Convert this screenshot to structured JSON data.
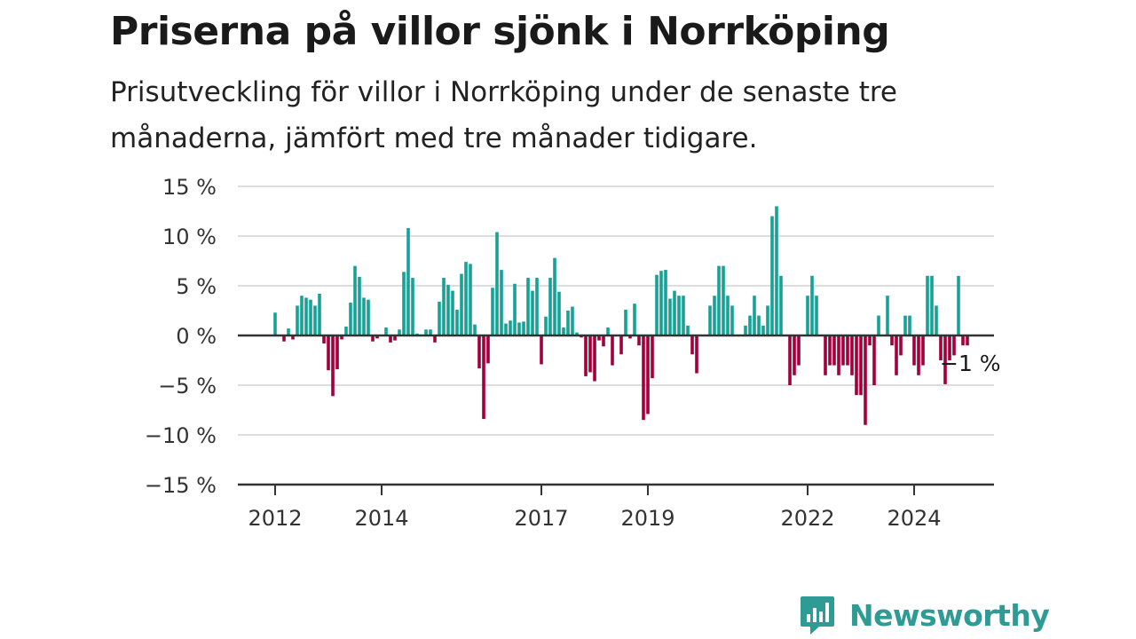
{
  "header": {
    "title": "Priserna på villor sjönk i Norrköping",
    "subtitle": "Prisutveckling för villor i Norrköping under de senaste tre månaderna, jämfört med tre månader tidigare."
  },
  "brand": {
    "name": "Newsworthy"
  },
  "colors": {
    "positive": "#17a298",
    "negative": "#a3003b",
    "grid": "#dddddd",
    "axis": "#333333",
    "brand": "#2e9c95"
  },
  "chart_data": {
    "type": "bar",
    "title": "Priserna på villor sjönk i Norrköping",
    "subtitle": "Prisutveckling för villor i Norrköping under de senaste tre månaderna, jämfört med tre månader tidigare.",
    "xlabel": "",
    "ylabel": "",
    "ylim": [
      -15,
      15
    ],
    "yticks": [
      15,
      10,
      5,
      0,
      -5,
      -10,
      -15
    ],
    "ytick_labels": [
      "15 %",
      "10 %",
      "5 %",
      "0 %",
      "−5 %",
      "−10 %",
      "−15 %"
    ],
    "xticks": [
      {
        "date": "2012-01",
        "label": "2012"
      },
      {
        "date": "2014-01",
        "label": "2014"
      },
      {
        "date": "2017-01",
        "label": "2017"
      },
      {
        "date": "2019-01",
        "label": "2019"
      },
      {
        "date": "2022-01",
        "label": "2022"
      },
      {
        "date": "2024-01",
        "label": "2024"
      }
    ],
    "grid": true,
    "annotation": {
      "date": "2025-01",
      "value": -1,
      "text": "−1 %"
    },
    "categories": [
      "2012-01",
      "2012-02",
      "2012-03",
      "2012-04",
      "2012-05",
      "2012-06",
      "2012-07",
      "2012-08",
      "2012-09",
      "2012-10",
      "2012-11",
      "2012-12",
      "2013-01",
      "2013-02",
      "2013-03",
      "2013-04",
      "2013-05",
      "2013-06",
      "2013-07",
      "2013-08",
      "2013-09",
      "2013-10",
      "2013-11",
      "2013-12",
      "2014-01",
      "2014-02",
      "2014-03",
      "2014-04",
      "2014-05",
      "2014-06",
      "2014-07",
      "2014-08",
      "2014-09",
      "2014-10",
      "2014-11",
      "2014-12",
      "2015-01",
      "2015-02",
      "2015-03",
      "2015-04",
      "2015-05",
      "2015-06",
      "2015-07",
      "2015-08",
      "2015-09",
      "2015-10",
      "2015-11",
      "2015-12",
      "2016-01",
      "2016-02",
      "2016-03",
      "2016-04",
      "2016-05",
      "2016-06",
      "2016-07",
      "2016-08",
      "2016-09",
      "2016-10",
      "2016-11",
      "2016-12",
      "2017-01",
      "2017-02",
      "2017-03",
      "2017-04",
      "2017-05",
      "2017-06",
      "2017-07",
      "2017-08",
      "2017-09",
      "2017-10",
      "2017-11",
      "2017-12",
      "2018-01",
      "2018-02",
      "2018-03",
      "2018-04",
      "2018-05",
      "2018-06",
      "2018-07",
      "2018-08",
      "2018-09",
      "2018-10",
      "2018-11",
      "2018-12",
      "2019-01",
      "2019-02",
      "2019-03",
      "2019-04",
      "2019-05",
      "2019-06",
      "2019-07",
      "2019-08",
      "2019-09",
      "2019-10",
      "2019-11",
      "2019-12",
      "2020-01",
      "2020-02",
      "2020-03",
      "2020-04",
      "2020-05",
      "2020-06",
      "2020-07",
      "2020-08",
      "2020-09",
      "2020-10",
      "2020-11",
      "2020-12",
      "2021-01",
      "2021-02",
      "2021-03",
      "2021-04",
      "2021-05",
      "2021-06",
      "2021-07",
      "2021-08",
      "2021-09",
      "2021-10",
      "2021-11",
      "2021-12",
      "2022-01",
      "2022-02",
      "2022-03",
      "2022-04",
      "2022-05",
      "2022-06",
      "2022-07",
      "2022-08",
      "2022-09",
      "2022-10",
      "2022-11",
      "2022-12",
      "2023-01",
      "2023-02",
      "2023-03",
      "2023-04",
      "2023-05",
      "2023-06",
      "2023-07",
      "2023-08",
      "2023-09",
      "2023-10",
      "2023-11",
      "2023-12",
      "2024-01",
      "2024-02",
      "2024-03",
      "2024-04",
      "2024-05",
      "2024-06",
      "2024-07",
      "2024-08",
      "2024-09",
      "2024-10",
      "2024-11",
      "2024-12",
      "2025-01"
    ],
    "values": [
      2.3,
      0,
      -0.6,
      0.7,
      -0.4,
      3.0,
      4.0,
      3.8,
      3.6,
      3.0,
      4.2,
      -0.8,
      -3.5,
      -6.1,
      -3.4,
      -0.4,
      0.9,
      3.3,
      7.0,
      5.9,
      3.8,
      3.6,
      -0.6,
      -0.3,
      0,
      0.8,
      -0.7,
      -0.5,
      0.6,
      6.4,
      10.8,
      5.8,
      0.2,
      0.1,
      0.6,
      0.6,
      -0.7,
      3.4,
      5.8,
      5.1,
      4.5,
      2.6,
      6.2,
      7.4,
      7.2,
      1.1,
      -3.3,
      -8.4,
      -2.8,
      4.8,
      10.4,
      6.6,
      1.2,
      1.5,
      5.2,
      1.3,
      1.4,
      5.8,
      4.5,
      5.8,
      -2.9,
      1.9,
      5.8,
      7.8,
      4.4,
      0.8,
      2.5,
      2.9,
      0.3,
      -0.2,
      -4.1,
      -3.7,
      -4.6,
      -0.5,
      -1.1,
      0.8,
      -3.0,
      0,
      -1.9,
      2.6,
      -0.3,
      3.2,
      -1.0,
      -8.5,
      -7.9,
      -4.3,
      6.1,
      6.5,
      6.6,
      3.7,
      4.5,
      4.0,
      4.0,
      1.0,
      -1.9,
      -3.8,
      0,
      0,
      3.0,
      4.0,
      7.0,
      7.0,
      4.0,
      3.0,
      0,
      0,
      1.0,
      2.0,
      4.0,
      2.0,
      1.0,
      3.0,
      12.0,
      13.0,
      6.0,
      0,
      -5.0,
      -4.0,
      -3.0,
      0,
      4.0,
      6.0,
      4.0,
      0,
      -4.0,
      -3.0,
      -3.0,
      -4.0,
      -3.0,
      -3.0,
      -4.0,
      -6.0,
      -6.0,
      -9.0,
      -1.0,
      -5.0,
      2.0,
      0,
      4.0,
      -1.0,
      -4.0,
      -2.0,
      2.0,
      2.0,
      -3.0,
      -4.0,
      -3.0,
      6.0,
      6.0,
      3.0,
      -2.5,
      -4.9,
      -2.5,
      -2.0,
      6.0,
      -1.0,
      -1.0
    ]
  }
}
